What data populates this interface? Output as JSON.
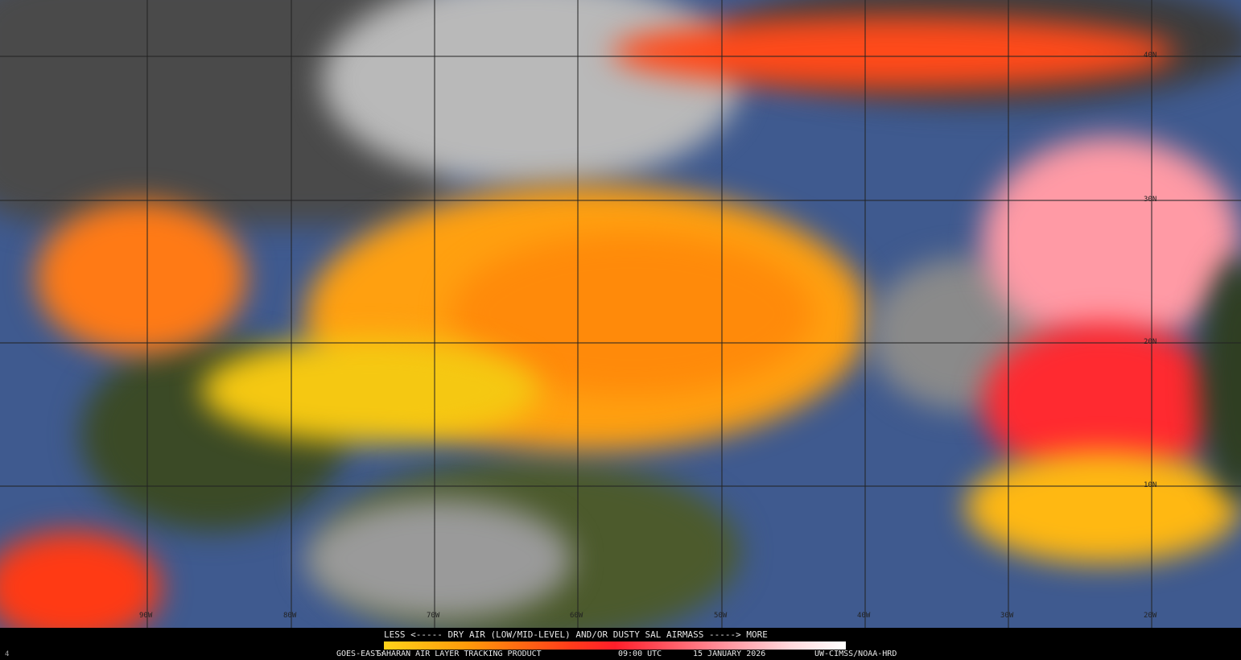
{
  "product": {
    "legend_title": "LESS <----- DRY AIR (LOW/MID-LEVEL) AND/OR DUSTY SAL AIRMASS -----> MORE",
    "satellite": "GOES-EAST:",
    "product_name": "SAHARAN AIR LAYER TRACKING PRODUCT",
    "time": "09:00 UTC",
    "date": "15 JANUARY 2026",
    "credit": "UW-CIMSS/NOAA-HRD",
    "corner_mark": "4"
  },
  "colorscale": [
    "#ffd21a",
    "#ff9a0a",
    "#ff3d1a",
    "#ff1e2a",
    "#ff8a95",
    "#ffd8dc",
    "#ffffff"
  ],
  "grid": {
    "longitudes": [
      "90W",
      "80W",
      "70W",
      "60W",
      "50W",
      "40W",
      "30W",
      "20W"
    ],
    "latitudes": [
      "40N",
      "30N",
      "20N",
      "10N"
    ]
  }
}
